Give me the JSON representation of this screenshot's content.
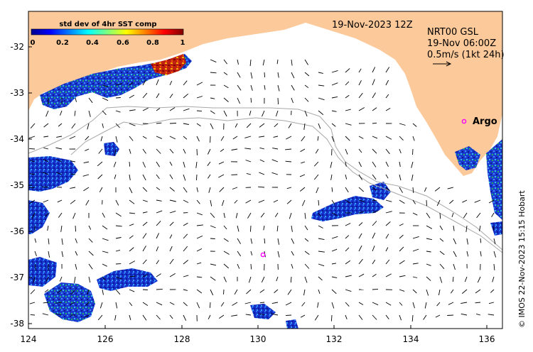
{
  "colorbar": {
    "title": "std dev of 4hr SST comp",
    "ticks": [
      "0",
      "0.2",
      "0.4",
      "0.6",
      "0.8",
      "1"
    ]
  },
  "annotations": {
    "datetime": "19-Nov-2023 12Z",
    "product": "NRT00 GSL",
    "current_time": "19-Nov 06:00Z",
    "scale_label": "0.5m/s (1kt 24h)",
    "argo_label": "Argo"
  },
  "credit": "© IMOS 22-Nov-2023 15:15 Hobart",
  "axes": {
    "lat_labels": [
      "-32",
      "-33",
      "-34",
      "-35",
      "-36",
      "-37",
      "-38"
    ],
    "lon_labels": [
      "124",
      "126",
      "128",
      "130",
      "132",
      "134",
      "136"
    ]
  },
  "colors": {
    "land": "#fcc99a",
    "ocean": "#ffffff",
    "argo_marker": "#ff00ff",
    "isobath": "#a8a8a8"
  }
}
